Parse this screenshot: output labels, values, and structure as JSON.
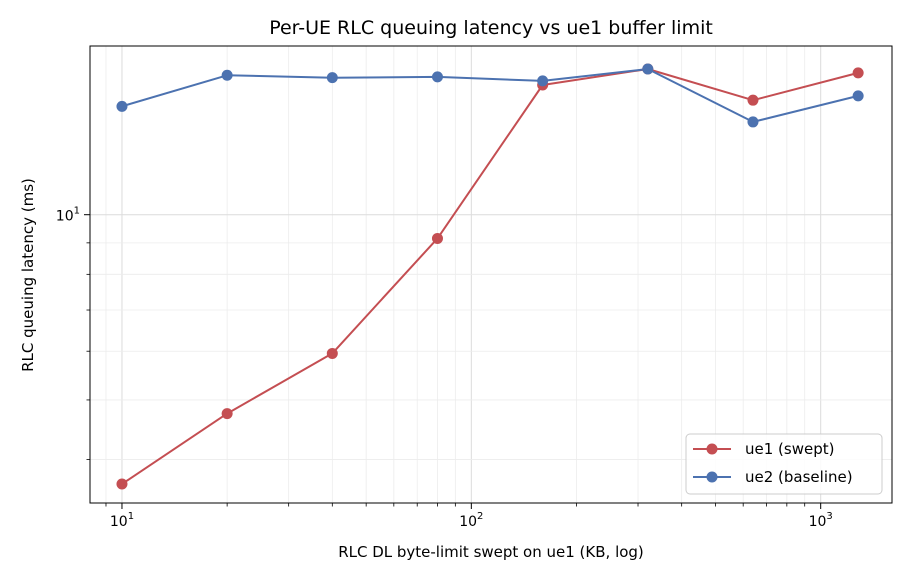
{
  "chart_data": {
    "type": "line",
    "title": "Per-UE RLC queuing latency vs ue1 buffer limit",
    "xlabel": "RLC DL byte-limit swept on ue1 (KB, log)",
    "ylabel": "RLC queuing latency (ms)",
    "xscale": "log",
    "yscale": "log",
    "xlim": [
      8.1,
      1600
    ],
    "ylim": [
      3.4,
      18.8
    ],
    "grid": true,
    "legend_position": "lower right",
    "x": [
      10,
      20,
      40,
      80,
      160,
      320,
      640,
      1280
    ],
    "x_tick_labels": [
      {
        "value": 10,
        "base": "10",
        "exp": "1"
      },
      {
        "value": 100,
        "base": "10",
        "exp": "2"
      },
      {
        "value": 1000,
        "base": "10",
        "exp": "3"
      }
    ],
    "y_tick_labels": [
      {
        "value": 10,
        "base": "10",
        "exp": "1"
      }
    ],
    "series": [
      {
        "name": "ue1 (swept)",
        "color": "#c44e52",
        "values": [
          3.65,
          4.75,
          5.95,
          9.15,
          16.25,
          17.25,
          15.35,
          17.0
        ]
      },
      {
        "name": "ue2 (baseline)",
        "color": "#4c72b0",
        "values": [
          15.0,
          16.85,
          16.7,
          16.75,
          16.5,
          17.25,
          14.15,
          15.6
        ]
      }
    ]
  }
}
